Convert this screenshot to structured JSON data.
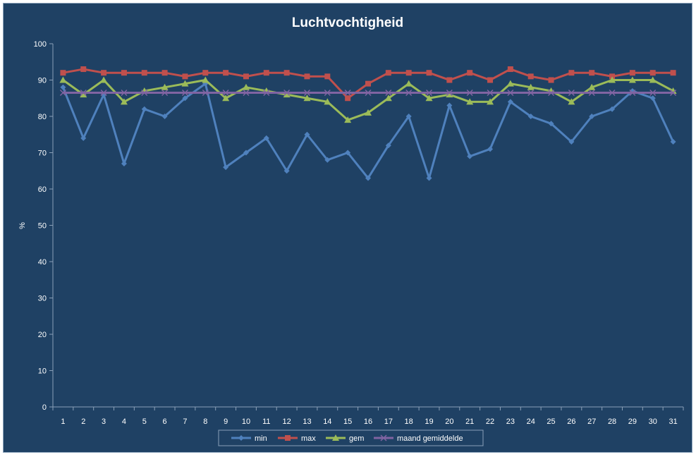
{
  "chart_data": {
    "type": "line",
    "title": "Luchtvochtigheid",
    "xlabel": "",
    "ylabel": "%",
    "ylim": [
      0,
      100
    ],
    "yticks": [
      0,
      10,
      20,
      30,
      40,
      50,
      60,
      70,
      80,
      90,
      100
    ],
    "categories": [
      "1",
      "2",
      "3",
      "4",
      "5",
      "6",
      "7",
      "8",
      "9",
      "10",
      "11",
      "12",
      "13",
      "14",
      "15",
      "16",
      "17",
      "18",
      "19",
      "20",
      "21",
      "22",
      "23",
      "24",
      "25",
      "26",
      "27",
      "28",
      "29",
      "30",
      "31"
    ],
    "grid": false,
    "legend_position": "bottom",
    "series": [
      {
        "name": "min",
        "color": "#4f81bd",
        "marker": "diamond",
        "values": [
          88,
          74,
          86,
          67,
          82,
          80,
          85,
          89,
          66,
          70,
          74,
          65,
          75,
          68,
          70,
          63,
          72,
          80,
          63,
          83,
          69,
          71,
          84,
          80,
          78,
          73,
          80,
          82,
          87,
          85,
          73
        ]
      },
      {
        "name": "max",
        "color": "#c0504d",
        "marker": "square",
        "values": [
          92,
          93,
          92,
          92,
          92,
          92,
          91,
          92,
          92,
          91,
          92,
          92,
          91,
          91,
          85,
          89,
          92,
          92,
          92,
          90,
          92,
          90,
          93,
          91,
          90,
          92,
          92,
          91,
          92,
          92,
          92
        ]
      },
      {
        "name": "gem",
        "color": "#9bbb59",
        "marker": "triangle",
        "values": [
          90,
          86,
          90,
          84,
          87,
          88,
          89,
          90,
          85,
          88,
          87,
          86,
          85,
          84,
          79,
          81,
          85,
          89,
          85,
          86,
          84,
          84,
          89,
          88,
          87,
          84,
          88,
          90,
          90,
          90,
          87
        ]
      },
      {
        "name": "maand gemiddelde",
        "color": "#8064a2",
        "marker": "x",
        "values": [
          86.5,
          86.5,
          86.5,
          86.5,
          86.5,
          86.5,
          86.5,
          86.5,
          86.5,
          86.5,
          86.5,
          86.5,
          86.5,
          86.5,
          86.5,
          86.5,
          86.5,
          86.5,
          86.5,
          86.5,
          86.5,
          86.5,
          86.5,
          86.5,
          86.5,
          86.5,
          86.5,
          86.5,
          86.5,
          86.5,
          86.5
        ]
      }
    ]
  }
}
